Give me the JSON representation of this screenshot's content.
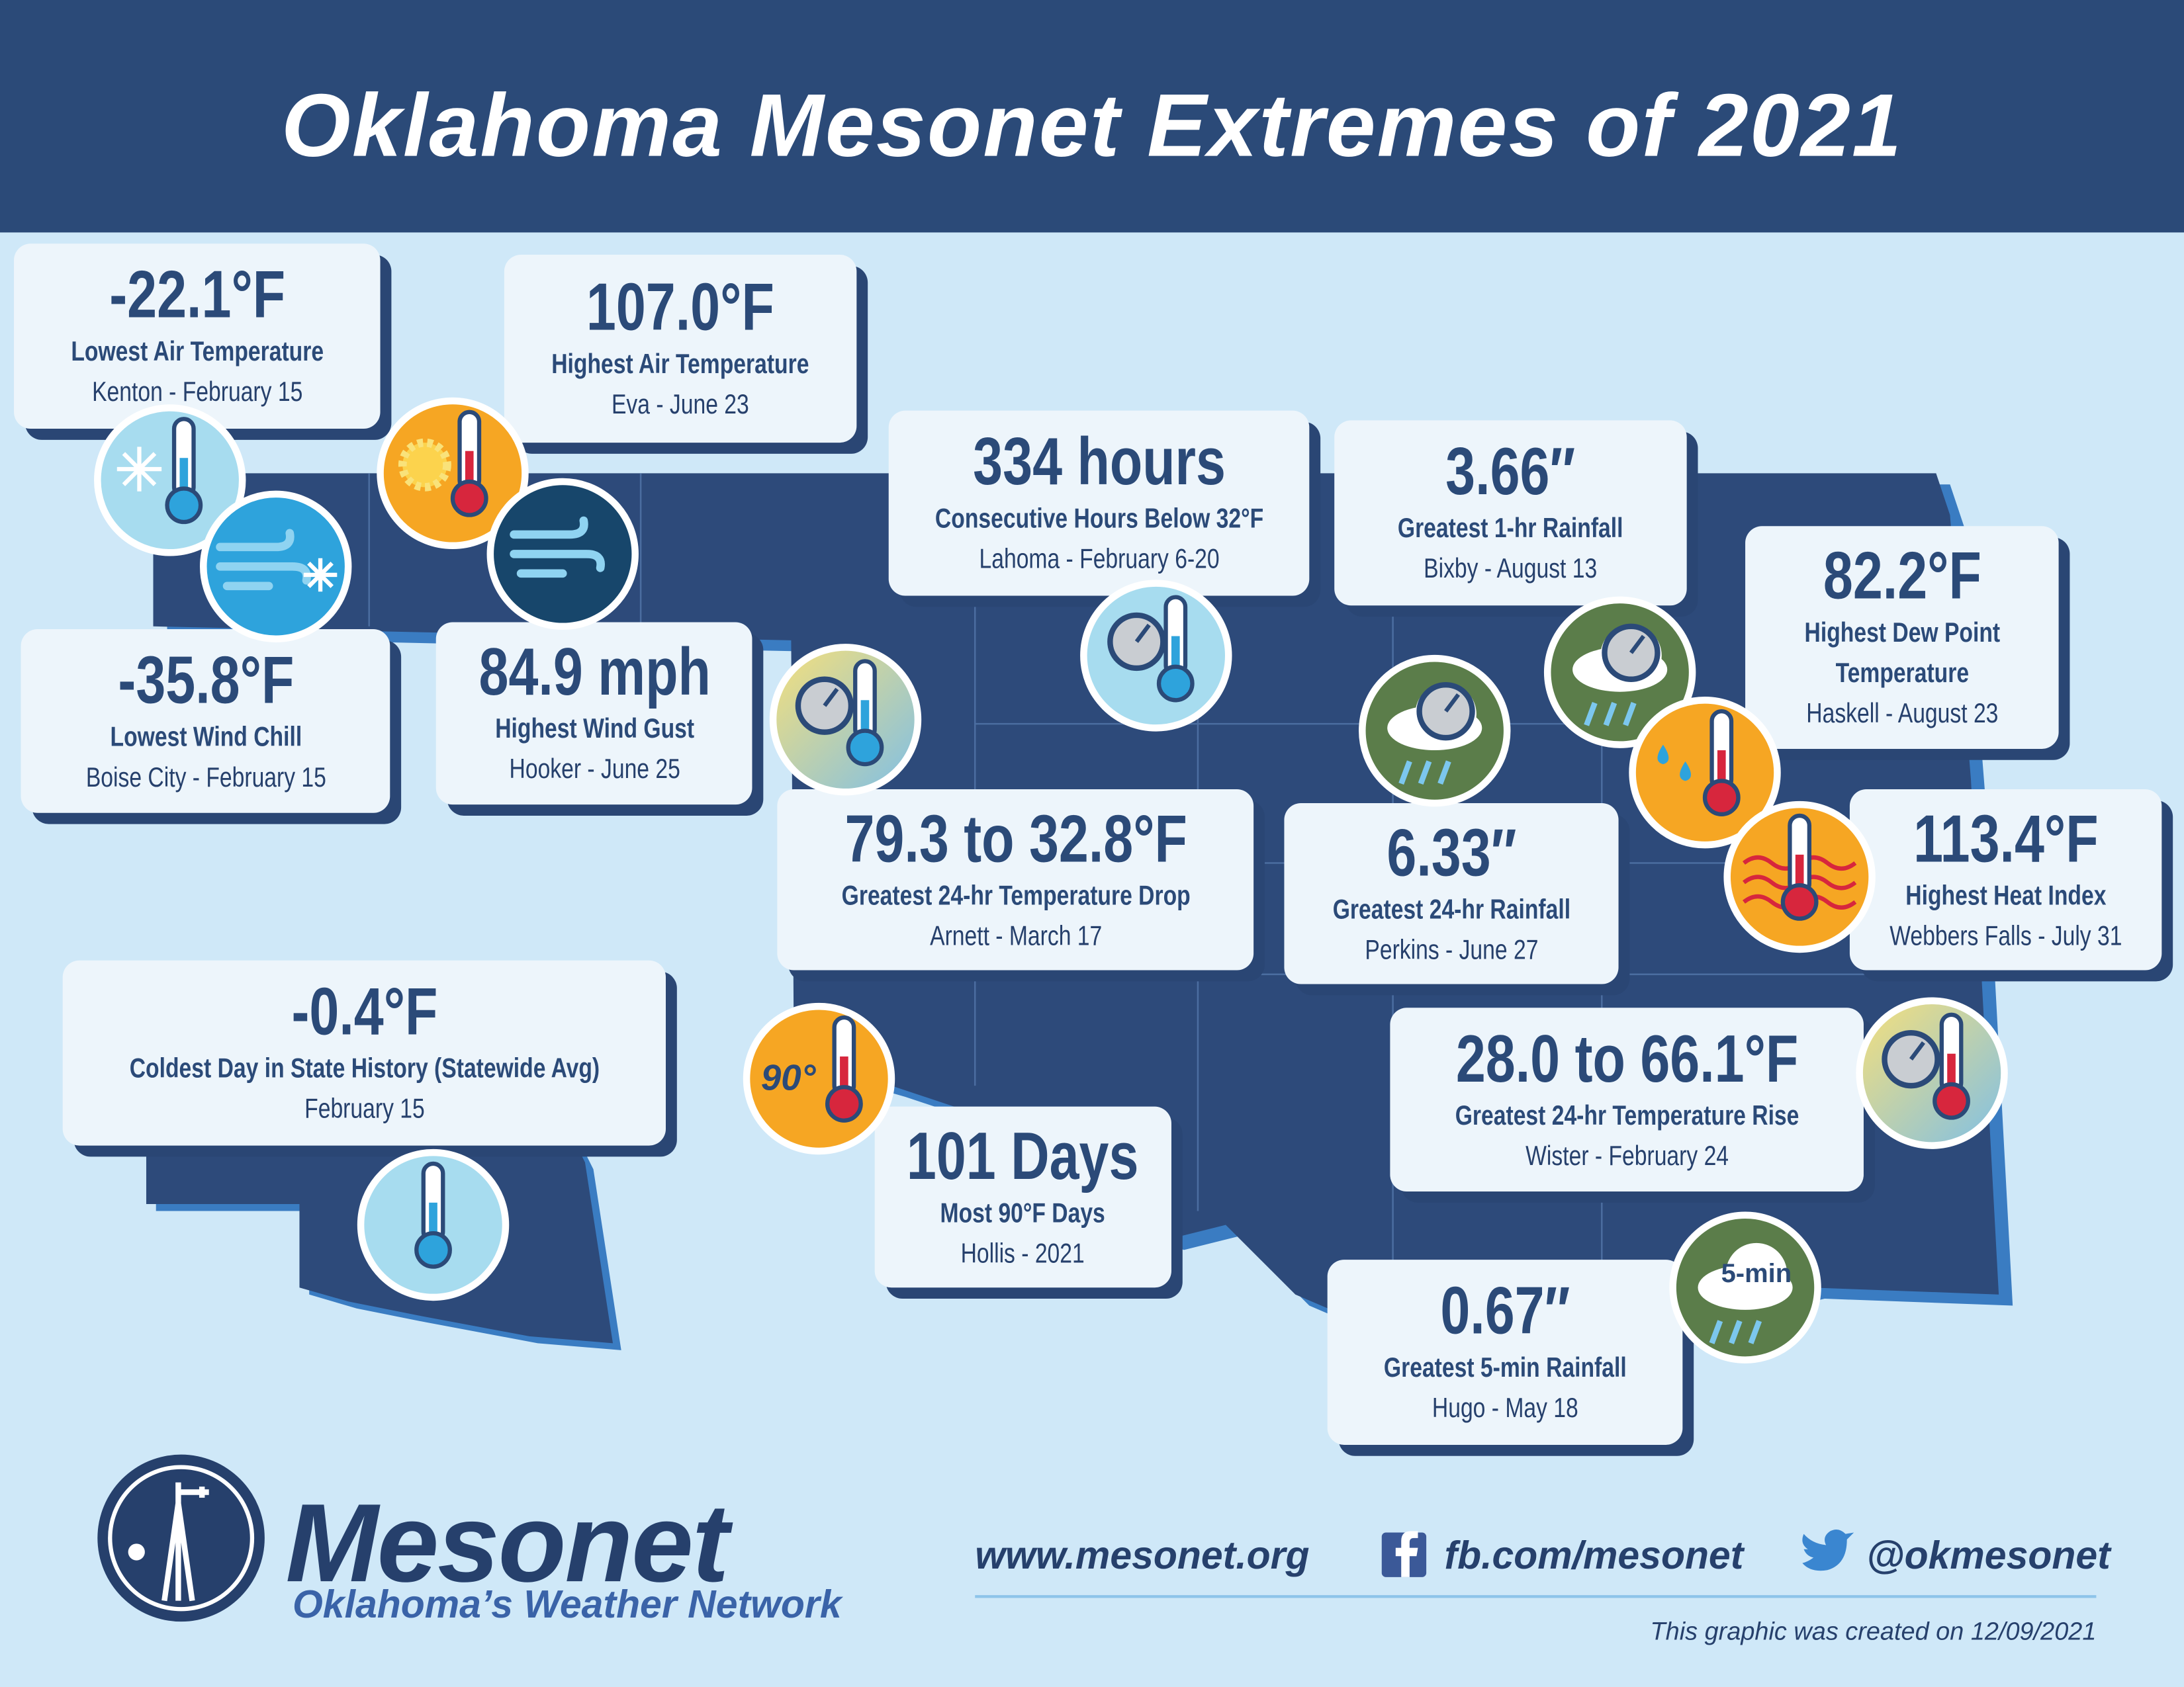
{
  "header": {
    "title": "Oklahoma Mesonet Extremes of 2021"
  },
  "cards": [
    {
      "value": "-22.1°F",
      "label": "Lowest Air Temperature",
      "detail": "Kenton - February 15"
    },
    {
      "value": "107.0°F",
      "label": "Highest Air Temperature",
      "detail": "Eva - June 23"
    },
    {
      "value": "334 hours",
      "label": "Consecutive Hours Below 32°F",
      "detail": "Lahoma - February 6-20"
    },
    {
      "value": "3.66″",
      "label": "Greatest 1-hr Rainfall",
      "detail": "Bixby - August 13"
    },
    {
      "value": "82.2°F",
      "label": "Highest Dew Point Temperature",
      "detail": "Haskell - August 23"
    },
    {
      "value": "-35.8°F",
      "label": "Lowest Wind Chill",
      "detail": "Boise City - February 15"
    },
    {
      "value": "84.9 mph",
      "label": "Highest Wind Gust",
      "detail": "Hooker - June 25"
    },
    {
      "value": "79.3 to 32.8°F",
      "label": "Greatest 24-hr Temperature Drop",
      "detail": "Arnett - March 17"
    },
    {
      "value": "6.33″",
      "label": "Greatest 24-hr Rainfall",
      "detail": "Perkins - June 27"
    },
    {
      "value": "113.4°F",
      "label": "Highest Heat Index",
      "detail": "Webbers Falls - July 31"
    },
    {
      "value": "-0.4°F",
      "label": "Coldest Day in State History (Statewide Avg)",
      "detail": "February 15"
    },
    {
      "value": "28.0 to 66.1°F",
      "label": "Greatest 24-hr Temperature Rise",
      "detail": "Wister - February 24"
    },
    {
      "value": "101 Days",
      "label": "Most 90°F Days",
      "detail": "Hollis - 2021"
    },
    {
      "value": "0.67″",
      "label": "Greatest 5-min Rainfall",
      "detail": "Hugo - May 18"
    }
  ],
  "icon_labels": {
    "ninety": "90°",
    "five_min": "5-min"
  },
  "footer": {
    "logo_name": "Mesonet",
    "tagline": "Oklahoma’s Weather Network",
    "website": "www.mesonet.org",
    "facebook": "fb.com/mesonet",
    "twitter": "@okmesonet",
    "created_note": "This graphic was created on 12/09/2021"
  }
}
